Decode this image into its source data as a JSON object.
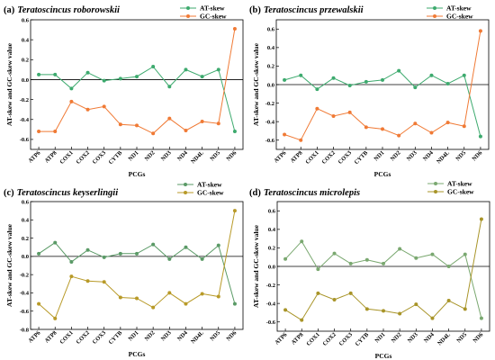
{
  "chart_data": [
    {
      "type": "line",
      "panel_label": "(a)",
      "title": "Teratoscincus roborowskii",
      "xlabel": "PCGs",
      "ylabel": "AT-skew and GC-skew value",
      "categories": [
        "ATP6",
        "ATP8",
        "COX1",
        "COX2",
        "COX3",
        "CYTB",
        "ND1",
        "ND2",
        "ND3",
        "ND4",
        "ND4L",
        "ND5",
        "ND6"
      ],
      "ylim": [
        -0.7,
        0.6
      ],
      "yticks": [
        -0.6,
        -0.4,
        -0.2,
        0.0,
        0.2,
        0.4,
        0.6
      ],
      "ytick_labels": [
        "-0.6",
        "-0.4",
        "-0.2",
        "0.0",
        "0.2",
        "0.4",
        "0.6"
      ],
      "legend_position": "top-right",
      "series": [
        {
          "name": "AT-skew",
          "color": "#3daa6e",
          "values": [
            0.05,
            0.05,
            -0.09,
            0.07,
            -0.01,
            0.01,
            0.03,
            0.13,
            -0.07,
            0.1,
            0.03,
            0.1,
            -0.52
          ]
        },
        {
          "name": "GC-skew",
          "color": "#f07a35",
          "values": [
            -0.52,
            -0.52,
            -0.22,
            -0.3,
            -0.27,
            -0.45,
            -0.46,
            -0.54,
            -0.39,
            -0.51,
            -0.42,
            -0.44,
            0.51
          ]
        }
      ]
    },
    {
      "type": "line",
      "panel_label": "(b)",
      "title": "Teratoscincus przewalskii",
      "xlabel": "PCGs",
      "ylabel": "AT-skew and GC-skew value",
      "categories": [
        "ATP6",
        "ATP8",
        "COX1",
        "COX2",
        "COX3",
        "CYTB",
        "ND1",
        "ND2",
        "ND3",
        "ND4",
        "ND4L",
        "ND5",
        "ND6"
      ],
      "ylim": [
        -0.7,
        0.7
      ],
      "yticks": [
        -0.6,
        -0.4,
        -0.2,
        0.0,
        0.2,
        0.4,
        0.6
      ],
      "ytick_labels": [
        "-0.6",
        "-0.4",
        "-0.2",
        "0.0",
        "0.2",
        "0.4",
        "0.6"
      ],
      "legend_position": "top-right",
      "series": [
        {
          "name": "AT-skew",
          "color": "#3daa6e",
          "values": [
            0.05,
            0.1,
            -0.05,
            0.07,
            -0.01,
            0.03,
            0.05,
            0.15,
            -0.03,
            0.1,
            0.01,
            0.1,
            -0.56
          ]
        },
        {
          "name": "GC-skew",
          "color": "#f07a35",
          "values": [
            -0.54,
            -0.6,
            -0.26,
            -0.34,
            -0.3,
            -0.46,
            -0.48,
            -0.55,
            -0.42,
            -0.52,
            -0.41,
            -0.45,
            0.58
          ]
        }
      ]
    },
    {
      "type": "line",
      "panel_label": "(c)",
      "title": "Teratoscincus keyserlingii",
      "xlabel": "PCGs",
      "ylabel": "AT-skew and GC-skew value",
      "categories": [
        "ATP6",
        "ATP8",
        "COX1",
        "COX2",
        "COX3",
        "CYTB",
        "ND1",
        "ND2",
        "ND3",
        "ND4",
        "ND4L",
        "ND5",
        "ND6"
      ],
      "ylim": [
        -0.8,
        0.6
      ],
      "yticks": [
        -0.8,
        -0.6,
        -0.4,
        -0.2,
        0.0,
        0.2,
        0.4,
        0.6
      ],
      "ytick_labels": [
        "-0.8",
        "-0.6",
        "-0.4",
        "-0.2",
        "0.0",
        "0.2",
        "0.4",
        "0.6"
      ],
      "legend_position": "top-right",
      "series": [
        {
          "name": "AT-skew",
          "color": "#5a9a66",
          "values": [
            0.03,
            0.15,
            -0.06,
            0.07,
            -0.01,
            0.03,
            0.03,
            0.13,
            -0.03,
            0.1,
            -0.03,
            0.12,
            -0.52
          ]
        },
        {
          "name": "GC-skew",
          "color": "#b89a28",
          "values": [
            -0.52,
            -0.68,
            -0.22,
            -0.27,
            -0.28,
            -0.45,
            -0.46,
            -0.56,
            -0.4,
            -0.52,
            -0.41,
            -0.44,
            0.5
          ]
        }
      ]
    },
    {
      "type": "line",
      "panel_label": "(d)",
      "title": "Teratoscincus microlepis",
      "xlabel": "PCGs",
      "ylabel": "AT-skew and GC-skew value",
      "categories": [
        "ATP6",
        "ATP8",
        "COX1",
        "COX2",
        "COX3",
        "CYTB",
        "ND1",
        "ND2",
        "ND3",
        "ND4",
        "ND4L",
        "ND5",
        "ND6"
      ],
      "ylim": [
        -0.7,
        0.7
      ],
      "yticks": [
        -0.6,
        -0.4,
        -0.2,
        0.0,
        0.2,
        0.4,
        0.6
      ],
      "ytick_labels": [
        "-0.6",
        "-0.4",
        "-0.2",
        "0.0",
        "0.2",
        "0.4",
        "0.6"
      ],
      "legend_position": "top-right",
      "series": [
        {
          "name": "AT-skew",
          "color": "#7aa870",
          "values": [
            0.08,
            0.27,
            -0.03,
            0.14,
            0.03,
            0.07,
            0.03,
            0.19,
            0.09,
            0.13,
            0.0,
            0.13,
            -0.56
          ]
        },
        {
          "name": "GC-skew",
          "color": "#a89428",
          "values": [
            -0.47,
            -0.58,
            -0.29,
            -0.36,
            -0.29,
            -0.46,
            -0.48,
            -0.51,
            -0.41,
            -0.56,
            -0.37,
            -0.46,
            0.51
          ]
        }
      ]
    }
  ]
}
